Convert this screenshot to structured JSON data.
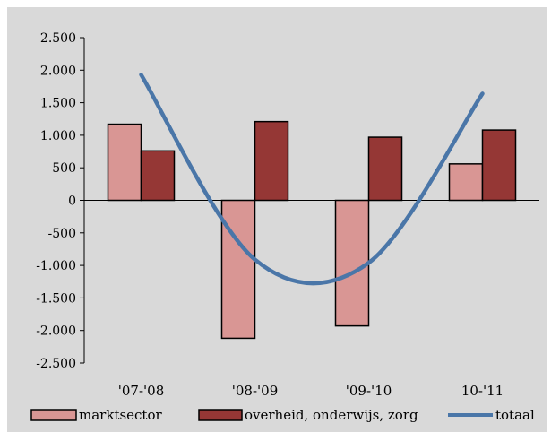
{
  "chart_data": {
    "type": "bar",
    "categories": [
      "'07-'08",
      "'08-'09",
      "'09-'10",
      "10-'11"
    ],
    "y_ticks": [
      "2.500",
      "2.000",
      "1.500",
      "1.000",
      "500",
      "0",
      "-500",
      "-1.000",
      "-1.500",
      "-2.000",
      "-2.500"
    ],
    "ylim": [
      -2500,
      2500
    ],
    "grid": false,
    "legend_position": "bottom",
    "series": [
      {
        "name": "marktsector",
        "type": "bar",
        "color": "#D99694",
        "values": [
          1170,
          -2120,
          -1930,
          560
        ]
      },
      {
        "name": "overheid, onderwijs, zorg",
        "type": "bar",
        "color": "#953735",
        "values": [
          760,
          1210,
          970,
          1080
        ]
      },
      {
        "name": "totaal",
        "type": "line",
        "smooth": true,
        "color": "#4A76A8",
        "values": [
          1930,
          -910,
          -960,
          1640
        ]
      }
    ]
  }
}
